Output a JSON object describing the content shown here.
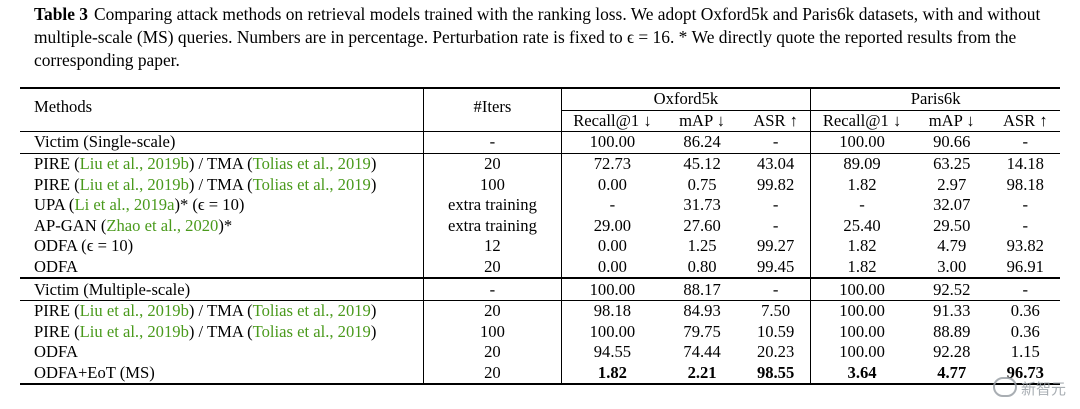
{
  "caption": {
    "label": "Table 3",
    "text": "Comparing attack methods on retrieval models trained with the ranking loss. We adopt Oxford5k and Paris6k datasets, with and without multiple-scale (MS) queries. Numbers are in percentage. Perturbation rate is fixed to ϵ = 16. * We directly quote the reported results from the corresponding paper."
  },
  "table": {
    "headers": {
      "methods": "Methods",
      "iters": "#Iters",
      "oxford": "Oxford5k",
      "paris": "Paris6k",
      "oxford_cols": [
        "Recall@1 ↓",
        "mAP ↓",
        "ASR ↑"
      ],
      "paris_cols": [
        "Recall@1 ↓",
        "mAP ↓",
        "ASR ↑"
      ]
    },
    "rows": [
      {
        "method": "Victim (Single-scale)",
        "iters": "-",
        "values": [
          "100.00",
          "86.24",
          "-",
          "100.00",
          "90.66",
          "-"
        ]
      },
      {
        "pre": "PIRE (",
        "cite1": "Liu et al., 2019b",
        "mid": ") / TMA (",
        "cite2": "Tolias et al., 2019",
        "post": ")",
        "iters": "20",
        "values": [
          "72.73",
          "45.12",
          "43.04",
          "89.09",
          "63.25",
          "14.18"
        ]
      },
      {
        "pre": "PIRE (",
        "cite1": "Liu et al., 2019b",
        "mid": ") / TMA (",
        "cite2": "Tolias et al., 2019",
        "post": ")",
        "iters": "100",
        "values": [
          "0.00",
          "0.75",
          "99.82",
          "1.82",
          "2.97",
          "98.18"
        ]
      },
      {
        "pre": "UPA (",
        "cite1": "Li et al., 2019a",
        "post": ")* (ϵ = 10)",
        "iters": "extra training",
        "values": [
          "-",
          "31.73",
          "-",
          "-",
          "32.07",
          "-"
        ]
      },
      {
        "pre": "AP-GAN (",
        "cite1": "Zhao et al., 2020",
        "post": ")*",
        "iters": "extra training",
        "values": [
          "29.00",
          "27.60",
          "-",
          "25.40",
          "29.50",
          "-"
        ]
      },
      {
        "method": "ODFA (ϵ = 10)",
        "iters": "12",
        "values": [
          "0.00",
          "1.25",
          "99.27",
          "1.82",
          "4.79",
          "93.82"
        ]
      },
      {
        "method": "ODFA",
        "iters": "20",
        "values": [
          "0.00",
          "0.80",
          "99.45",
          "1.82",
          "3.00",
          "96.91"
        ]
      },
      {
        "method": "Victim (Multiple-scale)",
        "iters": "-",
        "values": [
          "100.00",
          "88.17",
          "-",
          "100.00",
          "92.52",
          "-"
        ]
      },
      {
        "pre": "PIRE (",
        "cite1": "Liu et al., 2019b",
        "mid": ") / TMA (",
        "cite2": "Tolias et al., 2019",
        "post": ")",
        "iters": "20",
        "values": [
          "98.18",
          "84.93",
          "7.50",
          "100.00",
          "91.33",
          "0.36"
        ]
      },
      {
        "pre": "PIRE (",
        "cite1": "Liu et al., 2019b",
        "mid": ") / TMA (",
        "cite2": "Tolias et al., 2019",
        "post": ")",
        "iters": "100",
        "values": [
          "100.00",
          "79.75",
          "10.59",
          "100.00",
          "88.89",
          "0.36"
        ]
      },
      {
        "method": "ODFA",
        "iters": "20",
        "values": [
          "94.55",
          "74.44",
          "20.23",
          "100.00",
          "92.28",
          "1.15"
        ]
      },
      {
        "method": "ODFA+EoT (MS)",
        "iters": "20",
        "values": [
          "1.82",
          "2.21",
          "98.55",
          "3.64",
          "4.77",
          "96.73"
        ]
      }
    ]
  },
  "watermark": {
    "text": "新智元",
    "icon": "wechat-icon"
  }
}
